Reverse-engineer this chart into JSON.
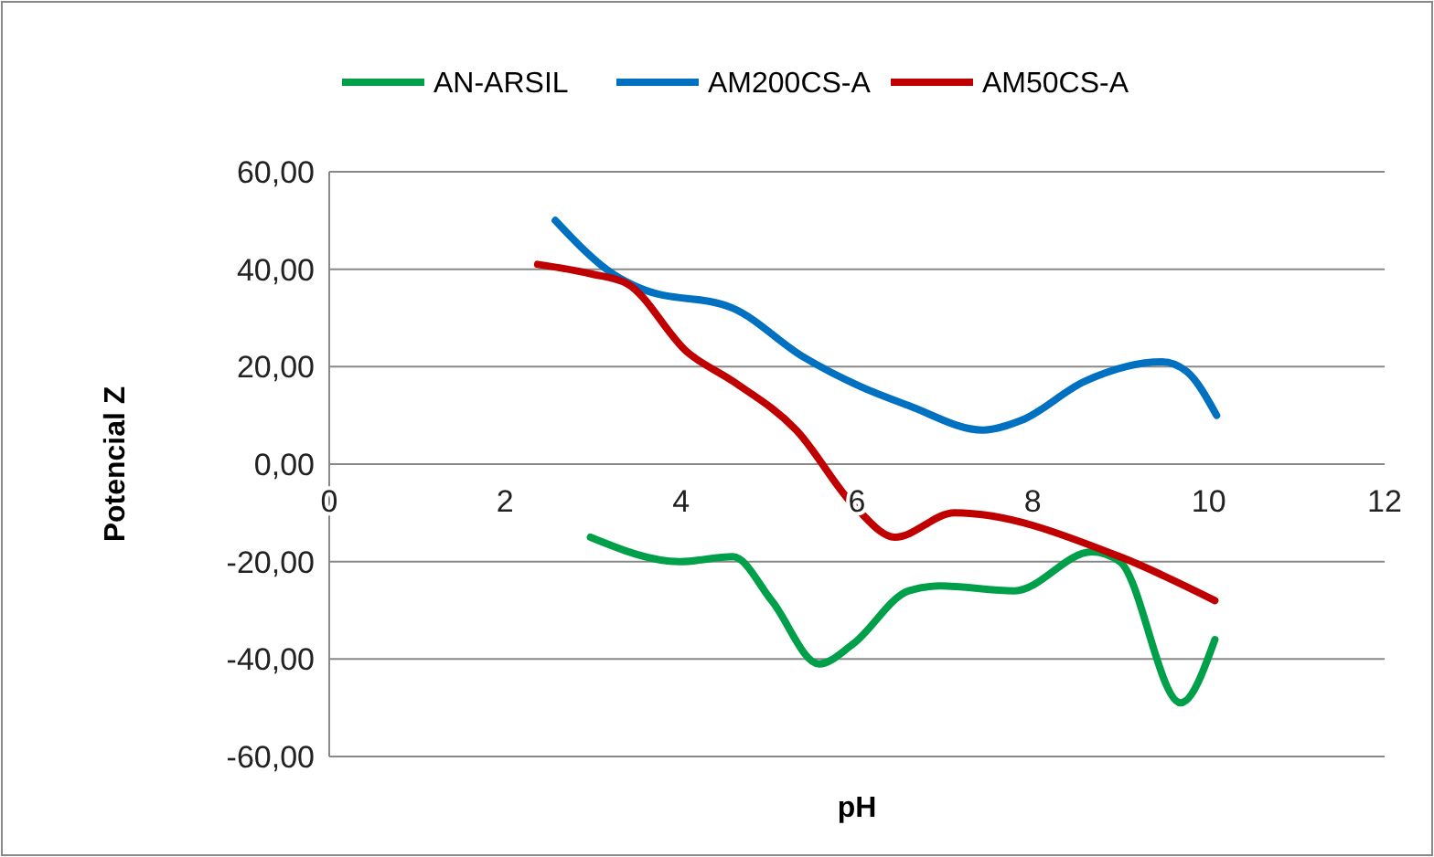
{
  "chart_data": {
    "type": "line",
    "xlabel": "pH",
    "ylabel": "Potencial Z",
    "xlim": [
      0,
      12
    ],
    "xticks": [
      0,
      2,
      4,
      6,
      8,
      10,
      12
    ],
    "ylim": [
      -60,
      60
    ],
    "yticks": [
      {
        "value": -60,
        "label": "-60,00"
      },
      {
        "value": -40,
        "label": "-40,00"
      },
      {
        "value": -20,
        "label": "-20,00"
      },
      {
        "value": 0,
        "label": "0,00"
      },
      {
        "value": 20,
        "label": "20,00"
      },
      {
        "value": 40,
        "label": "40,00"
      },
      {
        "value": 60,
        "label": "60,00"
      }
    ],
    "grid": "y",
    "legend": "top",
    "marker": "none",
    "line_style": "solid",
    "series": [
      {
        "name": "AN-ARSIL",
        "color": "#00a04a",
        "x": [
          2.97,
          3.99,
          4.59,
          5.03,
          5.57,
          5.95,
          6.59,
          6.95,
          7.79,
          8.67,
          8.99,
          9.68,
          10.07
        ],
        "values": [
          -15,
          -20,
          -19,
          -28,
          -41,
          -37,
          -26,
          -25,
          -26,
          -18,
          -20,
          -49,
          -36
        ]
      },
      {
        "name": "AM200CS-A",
        "color": "#0070c0",
        "x": [
          2.57,
          3.23,
          3.55,
          4.59,
          5.39,
          6.03,
          6.59,
          7.43,
          7.87,
          8.59,
          9.47,
          9.75,
          10.09
        ],
        "values": [
          50,
          39,
          36,
          32,
          22,
          16,
          12,
          7,
          9,
          17,
          21,
          19,
          10
        ]
      },
      {
        "name": "AM50CS-A",
        "color": "#c00000",
        "x": [
          2.37,
          2.99,
          3.39,
          4.07,
          4.59,
          5.31,
          5.99,
          6.43,
          7.11,
          8.99,
          10.07
        ],
        "values": [
          41,
          39,
          37,
          23,
          17,
          7,
          -9,
          -15,
          -10,
          -19,
          -28
        ]
      }
    ]
  }
}
